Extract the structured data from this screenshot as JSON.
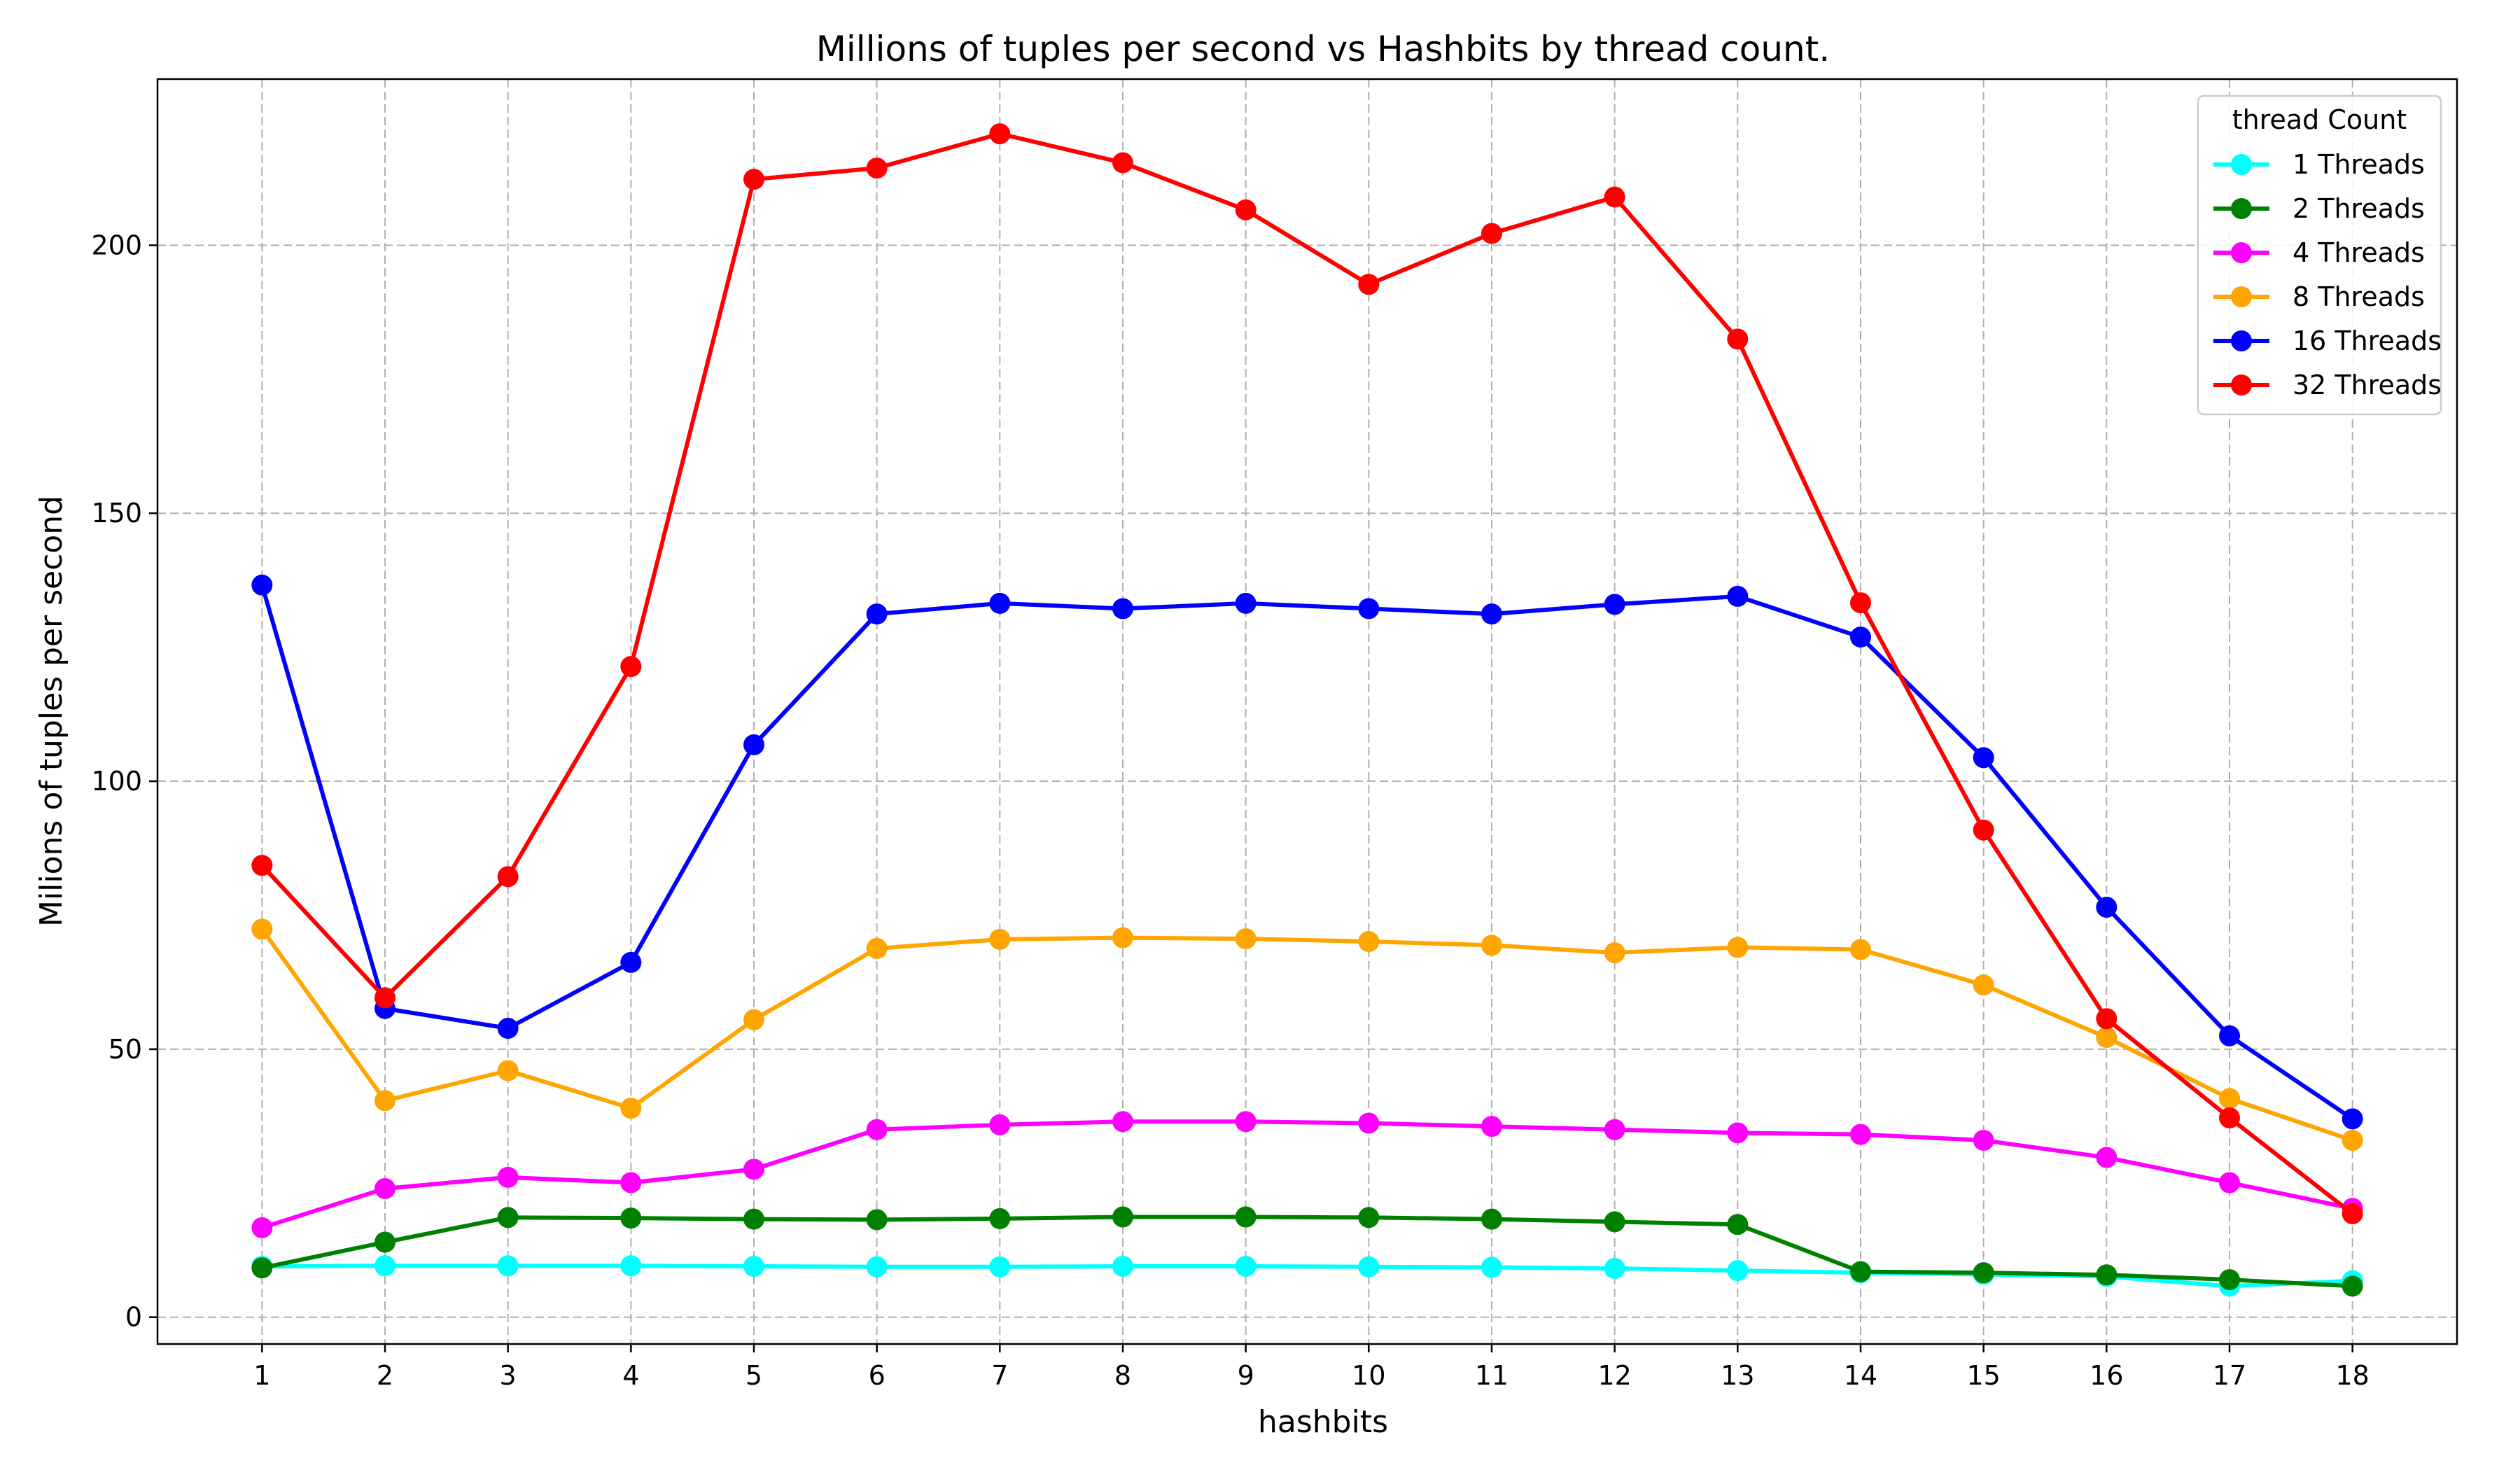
{
  "chart_data": {
    "type": "line",
    "title": "Millions of tuples per second vs Hashbits by thread count.",
    "xlabel": "hashbits",
    "ylabel": "Milions of tuples per second",
    "x": [
      1,
      2,
      3,
      4,
      5,
      6,
      7,
      8,
      9,
      10,
      11,
      12,
      13,
      14,
      15,
      16,
      17,
      18
    ],
    "xlim": [
      0.15,
      18.85
    ],
    "ylim": [
      -5,
      231
    ],
    "yticks": [
      0,
      50,
      100,
      150,
      200
    ],
    "grid": true,
    "legend": {
      "title": "thread Count",
      "placement": "top-right"
    },
    "series": [
      {
        "name": "1 Threads",
        "color": "#00ffff",
        "values": [
          9.5,
          9.6,
          9.6,
          9.6,
          9.5,
          9.4,
          9.4,
          9.5,
          9.5,
          9.4,
          9.3,
          9.1,
          8.7,
          8.3,
          8.0,
          7.6,
          5.8,
          6.8
        ]
      },
      {
        "name": "2 Threads",
        "color": "#008000",
        "values": [
          9.2,
          14.0,
          18.6,
          18.5,
          18.3,
          18.2,
          18.4,
          18.7,
          18.7,
          18.6,
          18.3,
          17.8,
          17.3,
          8.5,
          8.3,
          7.9,
          7.0,
          5.8
        ]
      },
      {
        "name": "4 Threads",
        "color": "#ff00ff",
        "values": [
          16.7,
          24.0,
          26.1,
          25.1,
          27.6,
          35.0,
          35.9,
          36.5,
          36.5,
          36.2,
          35.6,
          35.0,
          34.4,
          34.1,
          33.0,
          29.8,
          25.1,
          20.3
        ]
      },
      {
        "name": "8 Threads",
        "color": "#ffa500",
        "values": [
          72.4,
          40.4,
          46.0,
          39.0,
          55.5,
          68.8,
          70.5,
          70.8,
          70.6,
          70.1,
          69.4,
          68.0,
          69.0,
          68.6,
          62.0,
          52.2,
          40.8,
          33.0
        ]
      },
      {
        "name": "16 Threads",
        "color": "#0000ff",
        "values": [
          136.6,
          57.6,
          53.9,
          66.2,
          106.8,
          131.2,
          133.2,
          132.2,
          133.2,
          132.2,
          131.2,
          133.0,
          134.5,
          126.9,
          104.4,
          76.5,
          52.5,
          37.0
        ]
      },
      {
        "name": "32 Threads",
        "color": "#ff0000",
        "values": [
          84.3,
          59.6,
          82.2,
          121.4,
          212.3,
          214.4,
          220.8,
          215.4,
          206.6,
          192.7,
          202.2,
          209.0,
          182.5,
          133.3,
          90.9,
          55.7,
          37.2,
          19.3
        ]
      }
    ]
  }
}
